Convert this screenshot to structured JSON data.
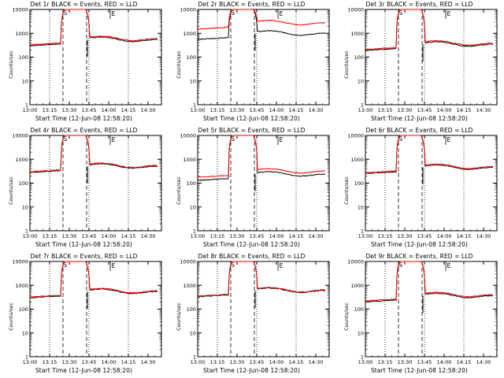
{
  "chart_data": [
    {
      "type": "line",
      "title": "Det 1r  BLACK = Events, RED = LLD",
      "xlabel": "Start Time (12-Jun-08 12:58:20)",
      "ylabel": "Counts/sec",
      "xticks": [
        "13:00",
        "13:15",
        "13:30",
        "13:45",
        "14:00",
        "14:15",
        "14:30"
      ],
      "xlim": [
        13.0,
        14.67
      ],
      "ylim": [
        1,
        10000
      ],
      "yscale": "log",
      "yticks": [
        "1",
        "10",
        "100",
        "1000",
        "10000"
      ],
      "markers": [
        "S",
        "E"
      ],
      "series": [
        {
          "name": "Events",
          "color": "#000000",
          "base": 300
        },
        {
          "name": "LLD",
          "color": "#ff0000",
          "base": 330
        }
      ]
    },
    {
      "type": "line",
      "title": "Det 2r  BLACK = Events, RED = LLD",
      "xlabel": "Start Time (12-Jun-08 12:58:20)",
      "ylabel": "Counts/sec",
      "xticks": [
        "13:00",
        "13:15",
        "13:30",
        "13:45",
        "14:00",
        "14:15",
        "14:30"
      ],
      "xlim": [
        13.0,
        14.67
      ],
      "ylim": [
        1,
        10000
      ],
      "yscale": "log",
      "yticks": [
        "1",
        "10",
        "100",
        "1000",
        "10000"
      ],
      "markers": [
        "S",
        "E"
      ],
      "series": [
        {
          "name": "Events",
          "color": "#000000",
          "base": 550
        },
        {
          "name": "LLD",
          "color": "#ff0000",
          "base": 1500
        }
      ]
    },
    {
      "type": "line",
      "title": "Det 3r  BLACK = Events, RED = LLD",
      "xlabel": "Start Time (12-Jun-08 12:58:20)",
      "ylabel": "Counts/sec",
      "xticks": [
        "13:00",
        "13:15",
        "13:30",
        "13:45",
        "14:00",
        "14:15",
        "14:30"
      ],
      "xlim": [
        13.0,
        14.67
      ],
      "ylim": [
        1,
        10000
      ],
      "yscale": "log",
      "yticks": [
        "1",
        "10",
        "100",
        "1000",
        "10000"
      ],
      "markers": [
        "S",
        "E"
      ],
      "series": [
        {
          "name": "Events",
          "color": "#000000",
          "base": 190
        },
        {
          "name": "LLD",
          "color": "#ff0000",
          "base": 210
        }
      ]
    },
    {
      "type": "line",
      "title": "Det 4r  BLACK = Events, RED = LLD",
      "xlabel": "Start Time (12-Jun-08 12:58:20)",
      "ylabel": "Counts/sec",
      "xticks": [
        "13:00",
        "13:15",
        "13:30",
        "13:45",
        "14:00",
        "14:15",
        "14:30"
      ],
      "xlim": [
        13.0,
        14.67
      ],
      "ylim": [
        1,
        10000
      ],
      "yscale": "log",
      "yticks": [
        "1",
        "10",
        "100",
        "1000",
        "10000"
      ],
      "markers": [
        "S",
        "E"
      ],
      "series": [
        {
          "name": "Events",
          "color": "#000000",
          "base": 280
        },
        {
          "name": "LLD",
          "color": "#ff0000",
          "base": 300
        }
      ]
    },
    {
      "type": "line",
      "title": "Det 5r  BLACK = Events, RED = LLD",
      "xlabel": "Start Time (12-Jun-08 12:58:20)",
      "ylabel": "Counts/sec",
      "xticks": [
        "13:00",
        "13:15",
        "13:30",
        "13:45",
        "14:00",
        "14:15",
        "14:30"
      ],
      "xlim": [
        13.0,
        14.67
      ],
      "ylim": [
        1,
        10000
      ],
      "yscale": "log",
      "yticks": [
        "1",
        "10",
        "100",
        "1000",
        "10000"
      ],
      "markers": [
        "S",
        "E"
      ],
      "series": [
        {
          "name": "Events",
          "color": "#000000",
          "base": 130
        },
        {
          "name": "LLD",
          "color": "#ff0000",
          "base": 175
        }
      ]
    },
    {
      "type": "line",
      "title": "Det 6r  BLACK = Events, RED = LLD",
      "xlabel": "Start Time (12-Jun-08 12:58:20)",
      "ylabel": "Counts/sec",
      "xticks": [
        "13:00",
        "13:15",
        "13:30",
        "13:45",
        "14:00",
        "14:15",
        "14:30"
      ],
      "xlim": [
        13.0,
        14.67
      ],
      "ylim": [
        1,
        10000
      ],
      "yscale": "log",
      "yticks": [
        "1",
        "10",
        "100",
        "1000",
        "10000"
      ],
      "markers": [
        "S",
        "E"
      ],
      "series": [
        {
          "name": "Events",
          "color": "#000000",
          "base": 250
        },
        {
          "name": "LLD",
          "color": "#ff0000",
          "base": 270
        }
      ]
    },
    {
      "type": "line",
      "title": "Det 7r  BLACK = Events, RED = LLD",
      "xlabel": "Start Time (12-Jun-08 12:58:20)",
      "ylabel": "Counts/sec",
      "xticks": [
        "13:00",
        "13:15",
        "13:30",
        "13:45",
        "14:00",
        "14:15",
        "14:30"
      ],
      "xlim": [
        13.0,
        14.67
      ],
      "ylim": [
        1,
        10000
      ],
      "yscale": "log",
      "yticks": [
        "1",
        "10",
        "100",
        "1000",
        "10000"
      ],
      "markers": [
        "S",
        "E"
      ],
      "series": [
        {
          "name": "Events",
          "color": "#000000",
          "base": 300
        },
        {
          "name": "LLD",
          "color": "#ff0000",
          "base": 320
        }
      ]
    },
    {
      "type": "line",
      "title": "Det 8r  BLACK = Events, RED = LLD",
      "xlabel": "Start Time (12-Jun-08 12:58:20)",
      "ylabel": "Counts/sec",
      "xticks": [
        "13:00",
        "13:15",
        "13:30",
        "13:45",
        "14:00",
        "14:15",
        "14:30"
      ],
      "xlim": [
        13.0,
        14.67
      ],
      "ylim": [
        1,
        10000
      ],
      "yscale": "log",
      "yticks": [
        "1",
        "10",
        "100",
        "1000",
        "10000"
      ],
      "markers": [
        "S",
        "E"
      ],
      "series": [
        {
          "name": "Events",
          "color": "#000000",
          "base": 330
        },
        {
          "name": "LLD",
          "color": "#ff0000",
          "base": 350
        }
      ]
    },
    {
      "type": "line",
      "title": "Det 9r  BLACK = Events, RED = LLD",
      "xlabel": "Start Time (12-Jun-08 12:58:20)",
      "ylabel": "Counts/sec",
      "xticks": [
        "13:00",
        "13:15",
        "13:30",
        "13:45",
        "14:00",
        "14:15",
        "14:30"
      ],
      "xlim": [
        13.0,
        14.67
      ],
      "ylim": [
        1,
        10000
      ],
      "yscale": "log",
      "yticks": [
        "1",
        "10",
        "100",
        "1000",
        "10000"
      ],
      "markers": [
        "S",
        "E"
      ],
      "series": [
        {
          "name": "Events",
          "color": "#000000",
          "base": 200
        },
        {
          "name": "LLD",
          "color": "#ff0000",
          "base": 220
        }
      ]
    }
  ]
}
